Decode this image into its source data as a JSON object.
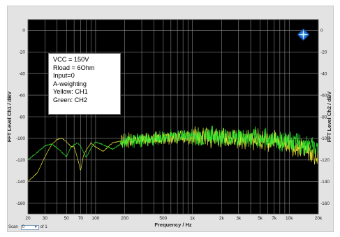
{
  "chart_data": {
    "type": "line",
    "x_scale": "log",
    "xlim": [
      20,
      20000
    ],
    "ylim": [
      -170,
      10
    ],
    "xlabel": "Frequency / Hz",
    "ylabel_left": "FFT Level Ch1 / dBV",
    "ylabel_right": "FFT Level Ch2 / dBV",
    "x_ticks": [
      20,
      30,
      50,
      70,
      100,
      200,
      500,
      1000,
      2000,
      3000,
      5000,
      7000,
      10000,
      20000
    ],
    "x_tick_labels": [
      "20",
      "30",
      "50",
      "70",
      "100",
      "200",
      "500",
      "1k",
      "2k",
      "3k",
      "5k",
      "7k",
      "10k",
      "20k"
    ],
    "y_ticks": [
      0,
      -20,
      -40,
      -60,
      -80,
      -100,
      -120,
      -140,
      -160
    ],
    "y_tick_labels": [
      "0",
      "-20",
      "-40",
      "-60",
      "-80",
      "-100",
      "-120",
      "-140",
      "-160"
    ],
    "grid": true,
    "background": "#000000",
    "grid_color": "#8a8a8a",
    "series": [
      {
        "name": "CH1",
        "color": "#e6e030",
        "x": [
          20,
          25,
          30,
          35,
          40,
          45,
          50,
          55,
          60,
          65,
          70,
          75,
          80,
          90,
          100,
          120,
          150,
          200,
          300,
          500,
          700,
          1000,
          2000,
          3000,
          5000,
          7000,
          10000,
          15000,
          20000
        ],
        "y": [
          -140,
          -132,
          -117,
          -106,
          -101,
          -100,
          -103,
          -107,
          -108,
          -118,
          -130,
          -116,
          -111,
          -104,
          -108,
          -112,
          -104,
          -102,
          -101,
          -100,
          -99,
          -99,
          -99,
          -100,
          -101,
          -102,
          -105,
          -110,
          -118
        ]
      },
      {
        "name": "CH2",
        "color": "#2ee830",
        "x": [
          20,
          25,
          30,
          35,
          40,
          45,
          50,
          55,
          60,
          65,
          70,
          75,
          80,
          90,
          100,
          120,
          150,
          200,
          300,
          500,
          700,
          1000,
          2000,
          3000,
          5000,
          7000,
          10000,
          15000,
          20000
        ],
        "y": [
          -120,
          -113,
          -107,
          -105,
          -109,
          -113,
          -117,
          -109,
          -106,
          -104,
          -107,
          -113,
          -118,
          -109,
          -103,
          -106,
          -110,
          -103,
          -101,
          -99,
          -98,
          -98,
          -98,
          -99,
          -100,
          -101,
          -103,
          -106,
          -110
        ]
      }
    ],
    "annotation_lines": [
      "VCC = 150V",
      "Rload = 6Ohm",
      "Input=0",
      "A-weighting",
      "Yellow: CH1",
      "Green: CH2"
    ],
    "legend": "top-left"
  },
  "scan": {
    "label": "Scan",
    "value": "0",
    "suffix": "of 1"
  },
  "logo_icon": "rohde-schwarz-diamond-icon"
}
